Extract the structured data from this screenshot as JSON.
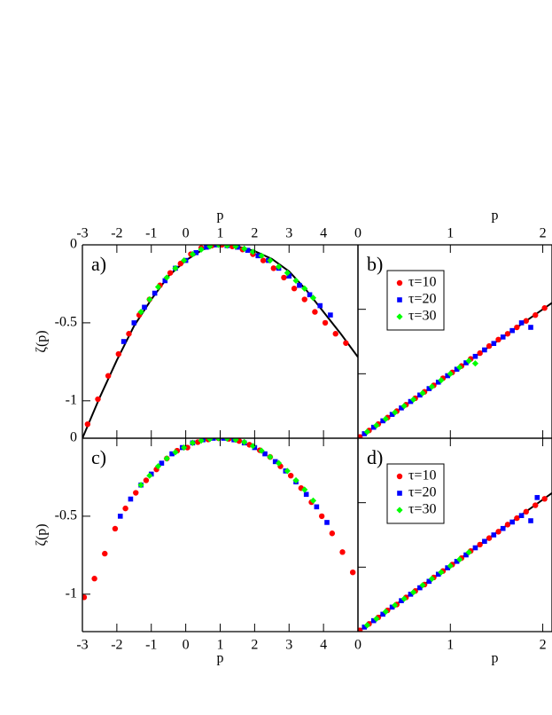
{
  "chart_data": [
    {
      "type": "scatter",
      "label": "a)",
      "xlabel": "p",
      "ylabel": "ζ(p)",
      "xaxis": "top",
      "xlim": [
        -3,
        5
      ],
      "ylim": [
        -1.24,
        0
      ],
      "xticks": [
        -3,
        -2,
        -1,
        0,
        1,
        2,
        3,
        4
      ],
      "yticks": [
        0,
        -0.5,
        -1
      ],
      "ytick_labels": true,
      "fit": {
        "color": "#000000",
        "x": [
          -3,
          -2.5,
          -2,
          -1.5,
          -1,
          -0.5,
          0,
          0.5,
          1,
          1.5,
          2,
          2.5,
          3,
          3.5,
          4,
          4.5,
          5
        ],
        "y": [
          -1.24,
          -0.98,
          -0.74,
          -0.52,
          -0.35,
          -0.2,
          -0.1,
          -0.03,
          0,
          -0.01,
          -0.04,
          -0.09,
          -0.17,
          -0.29,
          -0.43,
          -0.57,
          -0.72
        ]
      },
      "series": [
        {
          "color": "#ff0000",
          "marker": "circle",
          "x": [
            -2.85,
            -2.55,
            -2.25,
            -1.95,
            -1.65,
            -1.35,
            -1.05,
            -0.75,
            -0.45,
            -0.15,
            0.15,
            0.45,
            0.75,
            1.05,
            1.35,
            1.65,
            1.95,
            2.25,
            2.55,
            2.85,
            3.15,
            3.45,
            3.75,
            4.05,
            4.35,
            4.65
          ],
          "values": [
            -1.15,
            -0.99,
            -0.84,
            -0.7,
            -0.57,
            -0.45,
            -0.35,
            -0.26,
            -0.18,
            -0.12,
            -0.06,
            -0.02,
            -0.005,
            0,
            -0.01,
            -0.03,
            -0.06,
            -0.1,
            -0.15,
            -0.21,
            -0.28,
            -0.35,
            -0.43,
            -0.5,
            -0.57,
            -0.63
          ]
        },
        {
          "color": "#0000ff",
          "marker": "square",
          "x": [
            -1.8,
            -1.5,
            -1.2,
            -0.9,
            -0.6,
            -0.3,
            0,
            0.3,
            0.6,
            0.9,
            1.2,
            1.5,
            1.8,
            2.1,
            2.4,
            2.7,
            3,
            3.3,
            3.6,
            3.9,
            4.2
          ],
          "values": [
            -0.62,
            -0.5,
            -0.4,
            -0.31,
            -0.23,
            -0.15,
            -0.1,
            -0.05,
            -0.015,
            0,
            -0.005,
            -0.015,
            -0.035,
            -0.07,
            -0.1,
            -0.15,
            -0.2,
            -0.26,
            -0.32,
            -0.39,
            -0.45
          ]
        },
        {
          "color": "#00ff00",
          "marker": "diamond",
          "x": [
            -1.3,
            -1.05,
            -0.8,
            -0.55,
            -0.3,
            -0.05,
            0.2,
            0.45,
            0.7,
            0.95,
            1.2,
            1.45,
            1.7,
            1.95,
            2.2,
            2.45,
            2.7,
            2.95,
            3.2,
            3.45,
            3.7
          ],
          "values": [
            -0.43,
            -0.35,
            -0.27,
            -0.21,
            -0.15,
            -0.1,
            -0.06,
            -0.03,
            -0.01,
            0,
            -0.005,
            -0.01,
            -0.025,
            -0.045,
            -0.07,
            -0.1,
            -0.14,
            -0.18,
            -0.23,
            -0.28,
            -0.34
          ]
        }
      ]
    },
    {
      "type": "scatter",
      "label": "b)",
      "xlabel": "p",
      "xaxis": "top",
      "xlim": [
        0,
        2.1
      ],
      "ylim": [
        0,
        3
      ],
      "xticks": [
        0,
        1,
        2
      ],
      "yticks": [
        1,
        2
      ],
      "ytick_labels": false,
      "legend": "upper left",
      "fit": {
        "color": "#000000",
        "x": [
          0,
          2.1
        ],
        "y": [
          0,
          2.1
        ]
      },
      "series": [
        {
          "name": "τ=10",
          "color": "#ff0000",
          "marker": "circle",
          "x": [
            0.02,
            0.12,
            0.22,
            0.32,
            0.42,
            0.52,
            0.62,
            0.72,
            0.82,
            0.92,
            1.02,
            1.12,
            1.22,
            1.32,
            1.42,
            1.52,
            1.62,
            1.72,
            1.82,
            1.92,
            2.02
          ],
          "values": [
            0.02,
            0.12,
            0.22,
            0.32,
            0.42,
            0.52,
            0.62,
            0.72,
            0.82,
            0.93,
            1.02,
            1.12,
            1.23,
            1.32,
            1.43,
            1.53,
            1.62,
            1.72,
            1.82,
            1.91,
            2.02
          ]
        },
        {
          "name": "τ=20",
          "color": "#0000ff",
          "marker": "square",
          "x": [
            0.07,
            0.17,
            0.27,
            0.37,
            0.47,
            0.57,
            0.67,
            0.77,
            0.87,
            0.97,
            1.07,
            1.17,
            1.27,
            1.37,
            1.47,
            1.57,
            1.67,
            1.77,
            1.87
          ],
          "values": [
            0.07,
            0.17,
            0.27,
            0.37,
            0.47,
            0.57,
            0.67,
            0.77,
            0.87,
            0.97,
            1.07,
            1.17,
            1.27,
            1.37,
            1.47,
            1.57,
            1.67,
            1.79,
            1.72
          ]
        },
        {
          "name": "τ=30",
          "color": "#00ff00",
          "marker": "diamond",
          "x": [
            0.1,
            0.2,
            0.3,
            0.4,
            0.5,
            0.6,
            0.7,
            0.8,
            0.9,
            1,
            1.1,
            1.2,
            1.27
          ],
          "values": [
            0.1,
            0.2,
            0.3,
            0.4,
            0.5,
            0.6,
            0.7,
            0.8,
            0.9,
            1,
            1.1,
            1.2,
            1.16
          ]
        }
      ]
    },
    {
      "type": "scatter",
      "label": "c)",
      "xlabel": "p",
      "ylabel": "ζ(p)",
      "xaxis": "bottom",
      "xlim": [
        -3,
        5
      ],
      "ylim": [
        -1.24,
        0
      ],
      "xticks": [
        -3,
        -2,
        -1,
        0,
        1,
        2,
        3,
        4
      ],
      "yticks": [
        0,
        -0.5,
        -1
      ],
      "ytick_labels": true,
      "series": [
        {
          "color": "#ff0000",
          "marker": "circle",
          "x": [
            -2.95,
            -2.65,
            -2.35,
            -2.05,
            -1.75,
            -1.45,
            -1.15,
            -0.85,
            -0.55,
            -0.25,
            0.05,
            0.35,
            0.65,
            0.95,
            1.25,
            1.55,
            1.85,
            2.15,
            2.45,
            2.75,
            3.05,
            3.35,
            3.65,
            3.95,
            4.25,
            4.55,
            4.85
          ],
          "values": [
            -1.02,
            -0.9,
            -0.74,
            -0.58,
            -0.45,
            -0.35,
            -0.27,
            -0.2,
            -0.13,
            -0.08,
            -0.06,
            -0.025,
            -0.008,
            0,
            -0.004,
            -0.018,
            -0.042,
            -0.077,
            -0.12,
            -0.18,
            -0.24,
            -0.32,
            -0.41,
            -0.5,
            -0.61,
            -0.73,
            -0.86
          ]
        },
        {
          "color": "#0000ff",
          "marker": "square",
          "x": [
            -1.9,
            -1.6,
            -1.3,
            -1,
            -0.7,
            -0.4,
            -0.1,
            0.2,
            0.5,
            0.8,
            1.1,
            1.4,
            1.7,
            2,
            2.3,
            2.6,
            2.9,
            3.2,
            3.5,
            3.8,
            4.1
          ],
          "values": [
            -0.5,
            -0.39,
            -0.3,
            -0.23,
            -0.16,
            -0.1,
            -0.06,
            -0.03,
            -0.01,
            0,
            0,
            -0.01,
            -0.03,
            -0.06,
            -0.1,
            -0.15,
            -0.21,
            -0.28,
            -0.36,
            -0.44,
            -0.54
          ]
        },
        {
          "color": "#00ff00",
          "marker": "diamond",
          "x": [
            -1.3,
            -1.05,
            -0.8,
            -0.55,
            -0.3,
            -0.05,
            0.2,
            0.45,
            0.7,
            0.95,
            1.2,
            1.45,
            1.7,
            1.95,
            2.2,
            2.45,
            2.7,
            2.95,
            3.2,
            3.45,
            3.7
          ],
          "values": [
            -0.3,
            -0.24,
            -0.18,
            -0.13,
            -0.09,
            -0.06,
            -0.03,
            -0.015,
            -0.005,
            0,
            -0.002,
            -0.01,
            -0.025,
            -0.05,
            -0.08,
            -0.12,
            -0.16,
            -0.21,
            -0.27,
            -0.33,
            -0.4
          ]
        }
      ]
    },
    {
      "type": "scatter",
      "label": "d)",
      "xlabel": "p",
      "xaxis": "bottom",
      "xlim": [
        0,
        2.1
      ],
      "ylim": [
        0,
        3
      ],
      "xticks": [
        0,
        1,
        2
      ],
      "yticks": [
        1,
        2
      ],
      "ytick_labels": false,
      "legend": "upper left",
      "fit": {
        "color": "#000000",
        "x": [
          0,
          2.1
        ],
        "y": [
          0,
          2.15
        ]
      },
      "series": [
        {
          "name": "τ=10",
          "color": "#ff0000",
          "marker": "circle",
          "x": [
            0.02,
            0.12,
            0.22,
            0.32,
            0.42,
            0.52,
            0.62,
            0.72,
            0.82,
            0.92,
            1.02,
            1.12,
            1.22,
            1.32,
            1.42,
            1.52,
            1.62,
            1.72,
            1.82,
            1.92,
            2.02
          ],
          "values": [
            0.02,
            0.12,
            0.22,
            0.33,
            0.42,
            0.53,
            0.63,
            0.73,
            0.84,
            0.94,
            1.04,
            1.14,
            1.25,
            1.35,
            1.45,
            1.55,
            1.66,
            1.76,
            1.86,
            1.96,
            2.06
          ]
        },
        {
          "name": "τ=20",
          "color": "#0000ff",
          "marker": "square",
          "x": [
            0.07,
            0.17,
            0.27,
            0.37,
            0.47,
            0.57,
            0.67,
            0.77,
            0.87,
            0.97,
            1.07,
            1.17,
            1.27,
            1.37,
            1.47,
            1.57,
            1.67,
            1.77,
            1.87,
            1.94
          ],
          "values": [
            0.07,
            0.17,
            0.27,
            0.38,
            0.48,
            0.58,
            0.68,
            0.78,
            0.89,
            0.99,
            1.09,
            1.19,
            1.3,
            1.4,
            1.5,
            1.6,
            1.7,
            1.8,
            1.72,
            2.08
          ]
        },
        {
          "name": "τ=30",
          "color": "#00ff00",
          "marker": "diamond",
          "x": [
            0.1,
            0.2,
            0.3,
            0.4,
            0.5,
            0.6,
            0.7,
            0.8,
            0.9,
            1,
            1.1,
            1.2
          ],
          "values": [
            0.1,
            0.2,
            0.31,
            0.41,
            0.51,
            0.61,
            0.72,
            0.82,
            0.92,
            1.02,
            1.12,
            1.23
          ]
        }
      ]
    }
  ]
}
